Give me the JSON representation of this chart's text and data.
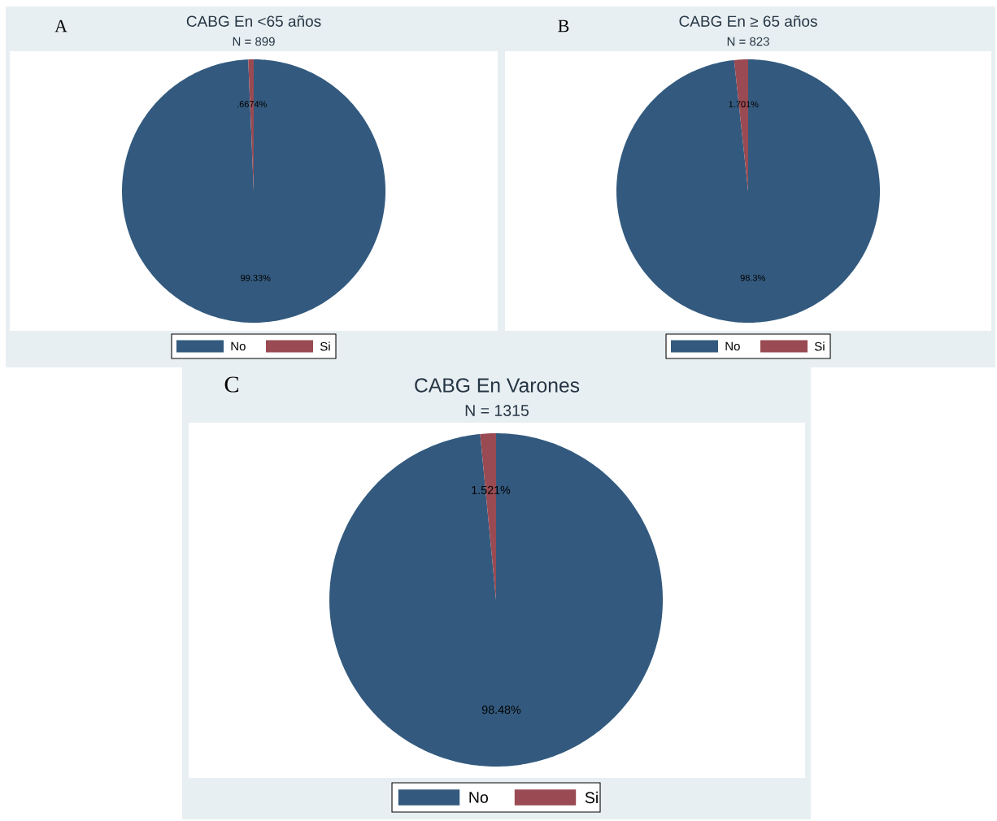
{
  "chart_data": [
    {
      "type": "pie",
      "title": "CABG En <65 años",
      "subtitle": "N = 899",
      "categories": [
        "No",
        "Si"
      ],
      "values": [
        99.33,
        0.6674
      ],
      "colors": [
        "#335a7e",
        "#9a4a52"
      ],
      "value_labels": [
        "99.33%",
        ".6674%"
      ],
      "legend": "bottom",
      "annotations": [
        "A"
      ]
    },
    {
      "type": "pie",
      "title": "CABG En ≥ 65 años",
      "subtitle": "N = 823",
      "categories": [
        "No",
        "Si"
      ],
      "values": [
        98.3,
        1.701
      ],
      "colors": [
        "#335a7e",
        "#9a4a52"
      ],
      "value_labels": [
        "98.3%",
        "1.701%"
      ],
      "legend": "bottom",
      "annotations": [
        "B"
      ]
    },
    {
      "type": "pie",
      "title": "CABG En Varones",
      "subtitle": "N = 1315",
      "categories": [
        "No",
        "Si"
      ],
      "values": [
        98.48,
        1.521
      ],
      "colors": [
        "#335a7e",
        "#9a4a52"
      ],
      "value_labels": [
        "98.48%",
        "1.521%"
      ],
      "legend": "bottom",
      "annotations": [
        "C"
      ]
    }
  ]
}
